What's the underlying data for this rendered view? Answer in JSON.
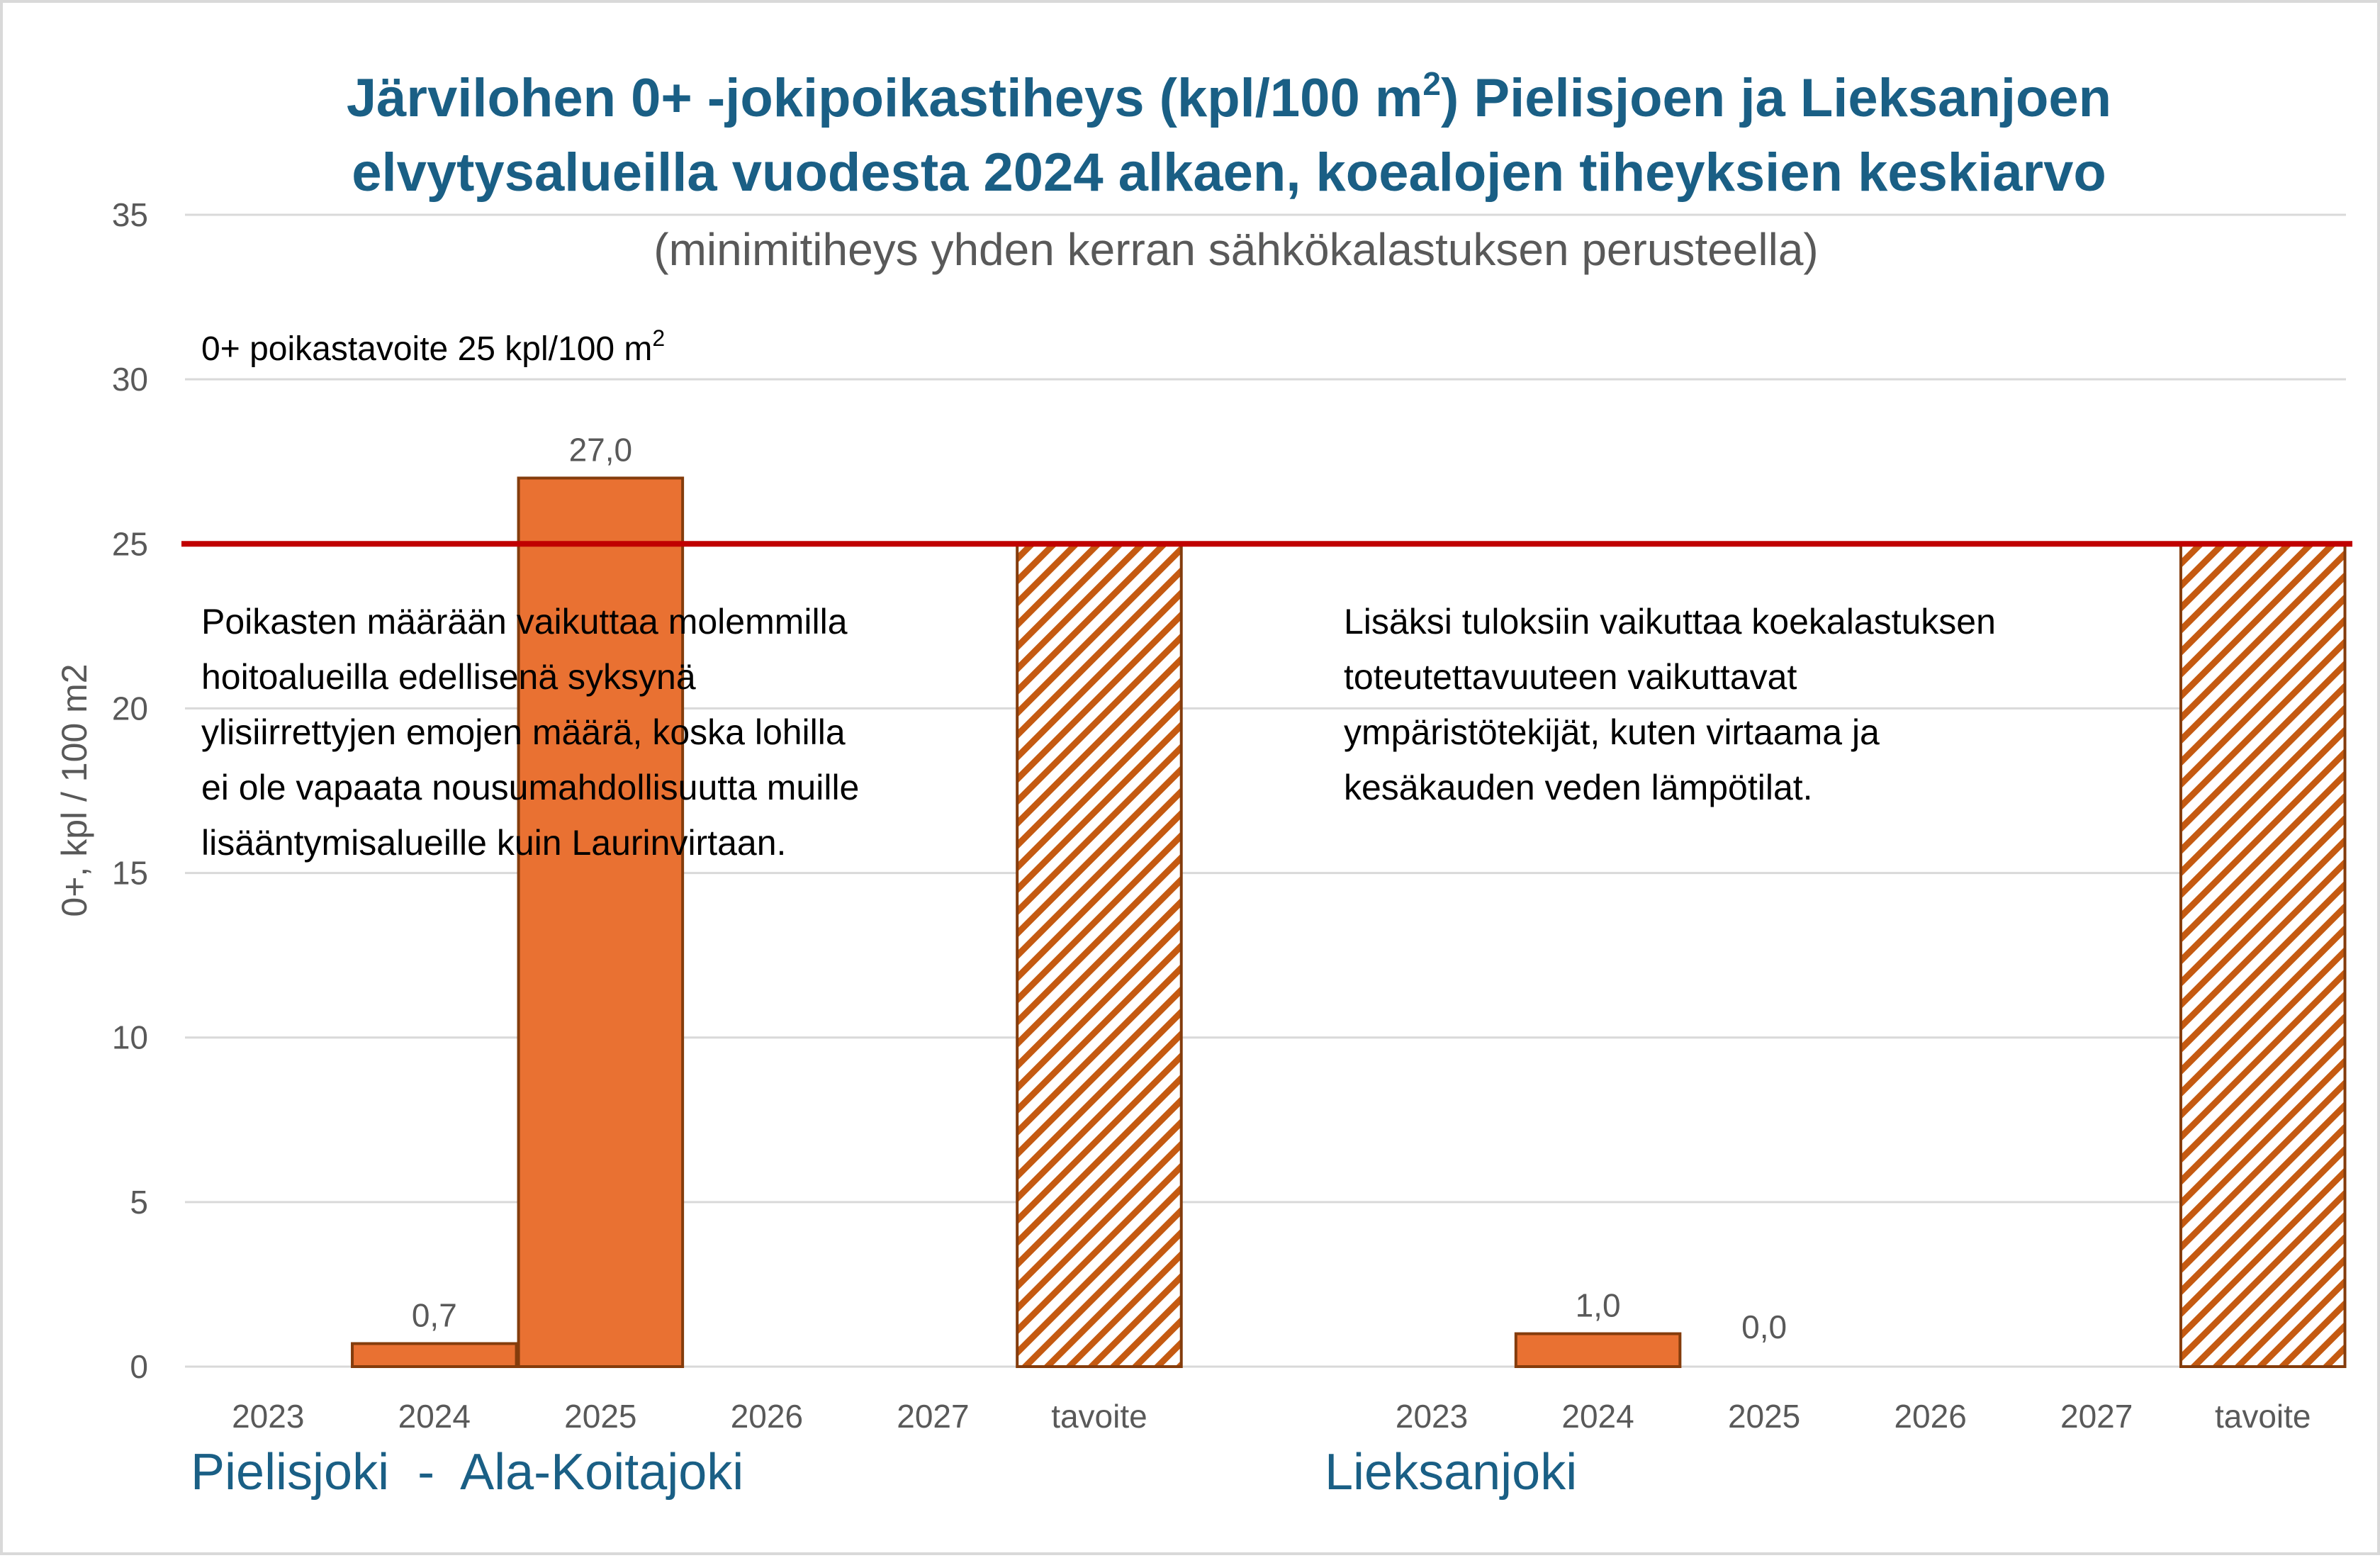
{
  "chart_data": {
    "type": "bar",
    "title": {
      "line1_pre": "Järvilohen 0+ -jokipoikastiheys (kpl/100 m",
      "line1_sup": "2",
      "line1_post": ") Pielisjoen ja Lieksanjoen",
      "line2": "elvytysalueilla vuodesta 2024 alkaen, koealojen tiheyksien keskiarvo"
    },
    "subtitle": "(minimitiheys yhden kerran sähkökalastuksen perusteella)",
    "ylabel": "0+, kpl / 100 m2",
    "xlabel": "",
    "ylim": [
      0,
      35
    ],
    "yticks": [
      0,
      5,
      10,
      15,
      20,
      25,
      30,
      35
    ],
    "grid": true,
    "target": {
      "value": 25,
      "label_pre": "0+ poikastavoite 25 kpl/100 m",
      "label_sup": "2",
      "color": "#C00000"
    },
    "groups": [
      {
        "name": "Pielisjoki  -  Ala-Koitajoki",
        "categories": [
          "2023",
          "2024",
          "2025",
          "2026",
          "2027",
          "tavoite"
        ],
        "values": [
          null,
          0.7,
          27.0,
          null,
          null,
          25
        ],
        "data_labels": [
          "",
          "0,7",
          "27,0",
          "",
          "",
          ""
        ],
        "note": [
          "Poikasten määrään vaikuttaa molemmilla",
          "hoitoalueilla edellisenä syksynä",
          "ylisiirrettyjen emojen määrä, koska lohilla",
          "ei ole vapaata nousumahdollisuutta muille",
          "lisääntymisalueille kuin Laurinvirtaan."
        ]
      },
      {
        "name": "Lieksanjoki",
        "categories": [
          "2023",
          "2024",
          "2025",
          "2026",
          "2027",
          "tavoite"
        ],
        "values": [
          null,
          1.0,
          0.0,
          null,
          null,
          25
        ],
        "data_labels": [
          "",
          "1,0",
          "0,0",
          "",
          "",
          ""
        ],
        "note": [
          "Lisäksi tuloksiin vaikuttaa koekalastuksen",
          "toteutettavuuteen vaikuttavat",
          "ympäristötekijät, kuten virtaama ja",
          "kesäkauden veden lämpötilat."
        ]
      }
    ],
    "colors": {
      "bar_fill": "#E97132",
      "bar_stroke": "#843C0C",
      "hatch": "#C55A11",
      "grid": "#D9D9D9",
      "title": "#1A5F85",
      "text_gray": "#595959"
    }
  }
}
